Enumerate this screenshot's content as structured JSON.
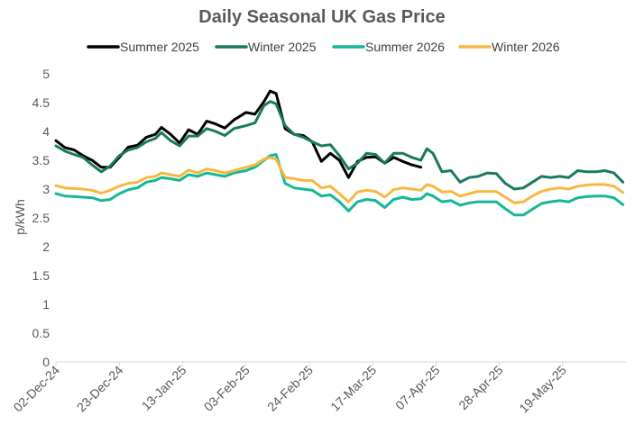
{
  "chart_data": {
    "type": "line",
    "title": "Daily Seasonal UK Gas Price",
    "xlabel": "",
    "ylabel": "p/kWh",
    "ylim": [
      0,
      5
    ],
    "yticks": [
      "0",
      "0.5",
      "1",
      "1.5",
      "2",
      "2.5",
      "3",
      "3.5",
      "4",
      "4.5",
      "5"
    ],
    "x_tick_labels": [
      "02-Dec-24",
      "23-Dec-24",
      "13-Jan-25",
      "03-Feb-25",
      "24-Feb-25",
      "17-Mar-25",
      "07-Apr-25",
      "28-Apr-25",
      "19-May-25"
    ],
    "x_range": [
      "02-Dec-24",
      "09-Jun-25"
    ],
    "grid": false,
    "legend_position": "top",
    "series": [
      {
        "name": "Summer 2025",
        "color": "#000000",
        "points": [
          [
            "02-Dec-24",
            3.84
          ],
          [
            "05-Dec-24",
            3.72
          ],
          [
            "08-Dec-24",
            3.68
          ],
          [
            "11-Dec-24",
            3.58
          ],
          [
            "14-Dec-24",
            3.5
          ],
          [
            "17-Dec-24",
            3.38
          ],
          [
            "20-Dec-24",
            3.38
          ],
          [
            "23-Dec-24",
            3.55
          ],
          [
            "26-Dec-24",
            3.73
          ],
          [
            "29-Dec-24",
            3.76
          ],
          [
            "01-Jan-25",
            3.9
          ],
          [
            "04-Jan-25",
            3.95
          ],
          [
            "06-Jan-25",
            4.07
          ],
          [
            "09-Jan-25",
            3.95
          ],
          [
            "12-Jan-25",
            3.8
          ],
          [
            "15-Jan-25",
            4.03
          ],
          [
            "18-Jan-25",
            3.95
          ],
          [
            "21-Jan-25",
            4.18
          ],
          [
            "24-Jan-25",
            4.13
          ],
          [
            "27-Jan-25",
            4.06
          ],
          [
            "30-Jan-25",
            4.2
          ],
          [
            "03-Feb-25",
            4.33
          ],
          [
            "06-Feb-25",
            4.3
          ],
          [
            "09-Feb-25",
            4.52
          ],
          [
            "11-Feb-25",
            4.7
          ],
          [
            "13-Feb-25",
            4.66
          ],
          [
            "16-Feb-25",
            4.05
          ],
          [
            "19-Feb-25",
            3.95
          ],
          [
            "22-Feb-25",
            3.93
          ],
          [
            "25-Feb-25",
            3.82
          ],
          [
            "28-Feb-25",
            3.48
          ],
          [
            "03-Mar-25",
            3.62
          ],
          [
            "06-Mar-25",
            3.5
          ],
          [
            "09-Mar-25",
            3.2
          ],
          [
            "12-Mar-25",
            3.48
          ],
          [
            "15-Mar-25",
            3.55
          ],
          [
            "18-Mar-25",
            3.56
          ],
          [
            "21-Mar-25",
            3.45
          ],
          [
            "24-Mar-25",
            3.55
          ],
          [
            "27-Mar-25",
            3.48
          ],
          [
            "30-Mar-25",
            3.42
          ],
          [
            "02-Apr-25",
            3.38
          ]
        ]
      },
      {
        "name": "Winter 2025",
        "color": "#1a7a5e",
        "points": [
          [
            "02-Dec-24",
            3.75
          ],
          [
            "05-Dec-24",
            3.66
          ],
          [
            "08-Dec-24",
            3.6
          ],
          [
            "11-Dec-24",
            3.55
          ],
          [
            "14-Dec-24",
            3.42
          ],
          [
            "17-Dec-24",
            3.3
          ],
          [
            "20-Dec-24",
            3.4
          ],
          [
            "23-Dec-24",
            3.58
          ],
          [
            "26-Dec-24",
            3.68
          ],
          [
            "29-Dec-24",
            3.72
          ],
          [
            "01-Jan-25",
            3.82
          ],
          [
            "04-Jan-25",
            3.88
          ],
          [
            "06-Jan-25",
            3.98
          ],
          [
            "09-Jan-25",
            3.84
          ],
          [
            "12-Jan-25",
            3.75
          ],
          [
            "15-Jan-25",
            3.92
          ],
          [
            "18-Jan-25",
            3.92
          ],
          [
            "21-Jan-25",
            4.05
          ],
          [
            "24-Jan-25",
            4.0
          ],
          [
            "27-Jan-25",
            3.93
          ],
          [
            "30-Jan-25",
            4.05
          ],
          [
            "03-Feb-25",
            4.1
          ],
          [
            "06-Feb-25",
            4.15
          ],
          [
            "09-Feb-25",
            4.45
          ],
          [
            "11-Feb-25",
            4.52
          ],
          [
            "13-Feb-25",
            4.48
          ],
          [
            "16-Feb-25",
            4.1
          ],
          [
            "19-Feb-25",
            3.95
          ],
          [
            "22-Feb-25",
            3.9
          ],
          [
            "25-Feb-25",
            3.82
          ],
          [
            "28-Feb-25",
            3.75
          ],
          [
            "03-Mar-25",
            3.77
          ],
          [
            "06-Mar-25",
            3.58
          ],
          [
            "09-Mar-25",
            3.35
          ],
          [
            "12-Mar-25",
            3.45
          ],
          [
            "15-Mar-25",
            3.62
          ],
          [
            "18-Mar-25",
            3.6
          ],
          [
            "21-Mar-25",
            3.45
          ],
          [
            "24-Mar-25",
            3.62
          ],
          [
            "27-Mar-25",
            3.62
          ],
          [
            "30-Mar-25",
            3.55
          ],
          [
            "02-Apr-25",
            3.5
          ],
          [
            "04-Apr-25",
            3.7
          ],
          [
            "06-Apr-25",
            3.62
          ],
          [
            "09-Apr-25",
            3.3
          ],
          [
            "12-Apr-25",
            3.32
          ],
          [
            "15-Apr-25",
            3.12
          ],
          [
            "18-Apr-25",
            3.2
          ],
          [
            "21-Apr-25",
            3.22
          ],
          [
            "24-Apr-25",
            3.28
          ],
          [
            "27-Apr-25",
            3.27
          ],
          [
            "30-Apr-25",
            3.1
          ],
          [
            "03-May-25",
            3.0
          ],
          [
            "06-May-25",
            3.02
          ],
          [
            "09-May-25",
            3.12
          ],
          [
            "12-May-25",
            3.22
          ],
          [
            "15-May-25",
            3.2
          ],
          [
            "18-May-25",
            3.22
          ],
          [
            "21-May-25",
            3.2
          ],
          [
            "24-May-25",
            3.32
          ],
          [
            "27-May-25",
            3.3
          ],
          [
            "30-May-25",
            3.3
          ],
          [
            "02-Jun-25",
            3.32
          ],
          [
            "05-Jun-25",
            3.28
          ],
          [
            "08-Jun-25",
            3.12
          ]
        ]
      },
      {
        "name": "Summer 2026",
        "color": "#14b896",
        "points": [
          [
            "02-Dec-24",
            2.92
          ],
          [
            "05-Dec-24",
            2.88
          ],
          [
            "08-Dec-24",
            2.87
          ],
          [
            "11-Dec-24",
            2.86
          ],
          [
            "14-Dec-24",
            2.85
          ],
          [
            "17-Dec-24",
            2.8
          ],
          [
            "20-Dec-24",
            2.82
          ],
          [
            "23-Dec-24",
            2.92
          ],
          [
            "26-Dec-24",
            2.99
          ],
          [
            "29-Dec-24",
            3.02
          ],
          [
            "01-Jan-25",
            3.12
          ],
          [
            "04-Jan-25",
            3.15
          ],
          [
            "06-Jan-25",
            3.2
          ],
          [
            "09-Jan-25",
            3.18
          ],
          [
            "12-Jan-25",
            3.15
          ],
          [
            "15-Jan-25",
            3.25
          ],
          [
            "18-Jan-25",
            3.22
          ],
          [
            "21-Jan-25",
            3.28
          ],
          [
            "24-Jan-25",
            3.25
          ],
          [
            "27-Jan-25",
            3.22
          ],
          [
            "30-Jan-25",
            3.28
          ],
          [
            "03-Feb-25",
            3.32
          ],
          [
            "06-Feb-25",
            3.38
          ],
          [
            "09-Feb-25",
            3.5
          ],
          [
            "11-Feb-25",
            3.58
          ],
          [
            "13-Feb-25",
            3.6
          ],
          [
            "16-Feb-25",
            3.1
          ],
          [
            "19-Feb-25",
            3.02
          ],
          [
            "22-Feb-25",
            3.0
          ],
          [
            "25-Feb-25",
            2.98
          ],
          [
            "28-Feb-25",
            2.88
          ],
          [
            "03-Mar-25",
            2.9
          ],
          [
            "06-Mar-25",
            2.78
          ],
          [
            "09-Mar-25",
            2.62
          ],
          [
            "12-Mar-25",
            2.78
          ],
          [
            "15-Mar-25",
            2.82
          ],
          [
            "18-Mar-25",
            2.8
          ],
          [
            "21-Mar-25",
            2.68
          ],
          [
            "24-Mar-25",
            2.82
          ],
          [
            "27-Mar-25",
            2.86
          ],
          [
            "30-Mar-25",
            2.82
          ],
          [
            "02-Apr-25",
            2.83
          ],
          [
            "04-Apr-25",
            2.92
          ],
          [
            "06-Apr-25",
            2.88
          ],
          [
            "09-Apr-25",
            2.78
          ],
          [
            "12-Apr-25",
            2.8
          ],
          [
            "15-Apr-25",
            2.72
          ],
          [
            "18-Apr-25",
            2.76
          ],
          [
            "21-Apr-25",
            2.78
          ],
          [
            "24-Apr-25",
            2.78
          ],
          [
            "27-Apr-25",
            2.78
          ],
          [
            "30-Apr-25",
            2.66
          ],
          [
            "03-May-25",
            2.55
          ],
          [
            "06-May-25",
            2.55
          ],
          [
            "09-May-25",
            2.65
          ],
          [
            "12-May-25",
            2.75
          ],
          [
            "15-May-25",
            2.78
          ],
          [
            "18-May-25",
            2.8
          ],
          [
            "21-May-25",
            2.78
          ],
          [
            "24-May-25",
            2.85
          ],
          [
            "27-May-25",
            2.87
          ],
          [
            "30-May-25",
            2.88
          ],
          [
            "02-Jun-25",
            2.88
          ],
          [
            "05-Jun-25",
            2.85
          ],
          [
            "08-Jun-25",
            2.73
          ]
        ]
      },
      {
        "name": "Winter 2026",
        "color": "#f5b942",
        "points": [
          [
            "02-Dec-24",
            3.06
          ],
          [
            "05-Dec-24",
            3.02
          ],
          [
            "08-Dec-24",
            3.01
          ],
          [
            "11-Dec-24",
            3.0
          ],
          [
            "14-Dec-24",
            2.98
          ],
          [
            "17-Dec-24",
            2.93
          ],
          [
            "20-Dec-24",
            2.98
          ],
          [
            "23-Dec-24",
            3.05
          ],
          [
            "26-Dec-24",
            3.1
          ],
          [
            "29-Dec-24",
            3.12
          ],
          [
            "01-Jan-25",
            3.2
          ],
          [
            "04-Jan-25",
            3.22
          ],
          [
            "06-Jan-25",
            3.28
          ],
          [
            "09-Jan-25",
            3.25
          ],
          [
            "12-Jan-25",
            3.22
          ],
          [
            "15-Jan-25",
            3.33
          ],
          [
            "18-Jan-25",
            3.28
          ],
          [
            "21-Jan-25",
            3.35
          ],
          [
            "24-Jan-25",
            3.32
          ],
          [
            "27-Jan-25",
            3.28
          ],
          [
            "30-Jan-25",
            3.32
          ],
          [
            "03-Feb-25",
            3.38
          ],
          [
            "06-Feb-25",
            3.42
          ],
          [
            "09-Feb-25",
            3.52
          ],
          [
            "11-Feb-25",
            3.55
          ],
          [
            "13-Feb-25",
            3.52
          ],
          [
            "16-Feb-25",
            3.2
          ],
          [
            "19-Feb-25",
            3.18
          ],
          [
            "22-Feb-25",
            3.15
          ],
          [
            "25-Feb-25",
            3.15
          ],
          [
            "28-Feb-25",
            3.02
          ],
          [
            "03-Mar-25",
            3.05
          ],
          [
            "06-Mar-25",
            2.92
          ],
          [
            "09-Mar-25",
            2.78
          ],
          [
            "12-Mar-25",
            2.95
          ],
          [
            "15-Mar-25",
            2.98
          ],
          [
            "18-Mar-25",
            2.96
          ],
          [
            "21-Mar-25",
            2.86
          ],
          [
            "24-Mar-25",
            2.99
          ],
          [
            "27-Mar-25",
            3.02
          ],
          [
            "30-Mar-25",
            3.0
          ],
          [
            "02-Apr-25",
            2.98
          ],
          [
            "04-Apr-25",
            3.08
          ],
          [
            "06-Apr-25",
            3.05
          ],
          [
            "09-Apr-25",
            2.95
          ],
          [
            "12-Apr-25",
            2.96
          ],
          [
            "15-Apr-25",
            2.88
          ],
          [
            "18-Apr-25",
            2.92
          ],
          [
            "21-Apr-25",
            2.96
          ],
          [
            "24-Apr-25",
            2.96
          ],
          [
            "27-Apr-25",
            2.96
          ],
          [
            "30-Apr-25",
            2.86
          ],
          [
            "03-May-25",
            2.76
          ],
          [
            "06-May-25",
            2.78
          ],
          [
            "09-May-25",
            2.88
          ],
          [
            "12-May-25",
            2.96
          ],
          [
            "15-May-25",
            3.0
          ],
          [
            "18-May-25",
            3.02
          ],
          [
            "21-May-25",
            3.0
          ],
          [
            "24-May-25",
            3.05
          ],
          [
            "27-May-25",
            3.07
          ],
          [
            "30-May-25",
            3.08
          ],
          [
            "02-Jun-25",
            3.08
          ],
          [
            "05-Jun-25",
            3.05
          ],
          [
            "08-Jun-25",
            2.94
          ]
        ]
      }
    ]
  }
}
